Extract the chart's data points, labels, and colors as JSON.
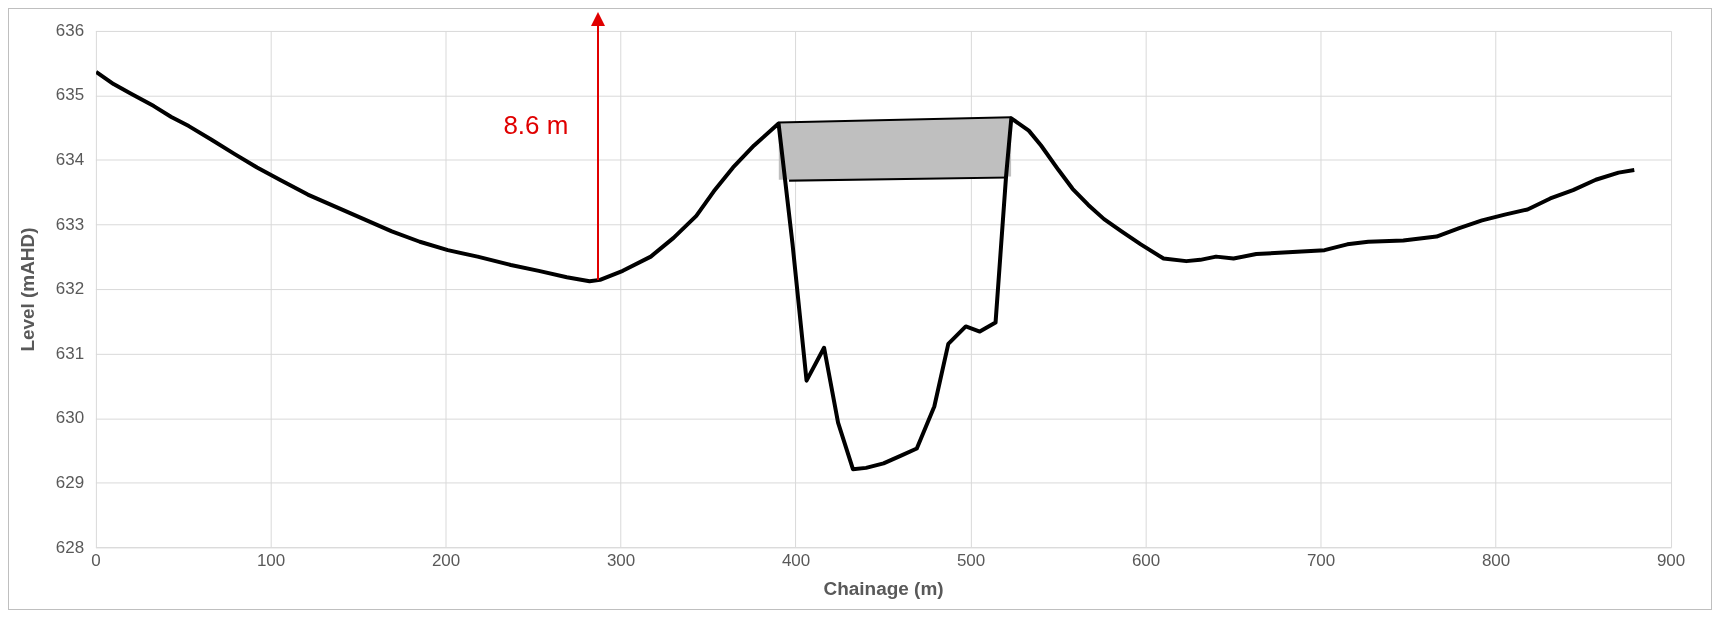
{
  "chart_data": {
    "type": "line",
    "xlabel": "Chainage (m)",
    "ylabel": "Level (mAHD)",
    "xlim": [
      0,
      900
    ],
    "xticks": [
      0,
      100,
      200,
      300,
      400,
      500,
      600,
      700,
      800,
      900
    ],
    "ylim": [
      628,
      636
    ],
    "yticks": [
      628,
      629,
      630,
      631,
      632,
      633,
      634,
      635,
      636
    ],
    "grid": true,
    "annotations": [
      "8.6 m"
    ],
    "series": [
      {
        "color": "#000000",
        "x": [
          0,
          10,
          20,
          33,
          43,
          53,
          66,
          79,
          92,
          105,
          121,
          137,
          153,
          169,
          185,
          201,
          218,
          237,
          253,
          269,
          282,
          288,
          301,
          317,
          330,
          343,
          353,
          364,
          376,
          390,
          398,
          406,
          416,
          424,
          432.5,
          440,
          450,
          460,
          469,
          479,
          487,
          497,
          505,
          514,
          520,
          523,
          533,
          540,
          550,
          558,
          567,
          576,
          586,
          597,
          610,
          623,
          631,
          640,
          650,
          663,
          676,
          689,
          702,
          715,
          727,
          747,
          766,
          779,
          792,
          805,
          818,
          831,
          844,
          857,
          870,
          879
        ],
        "values": [
          635.37,
          635.18,
          635.03,
          634.84,
          634.67,
          634.53,
          634.32,
          634.1,
          633.89,
          633.7,
          633.47,
          633.28,
          633.09,
          632.9,
          632.74,
          632.61,
          632.51,
          632.38,
          632.29,
          632.19,
          632.13,
          632.15,
          632.29,
          632.51,
          632.8,
          633.14,
          633.52,
          633.89,
          634.23,
          634.57,
          632.7,
          630.59,
          631.1,
          629.94,
          629.22,
          629.24,
          629.31,
          629.43,
          629.54,
          630.19,
          631.16,
          631.43,
          631.35,
          631.49,
          633.75,
          634.65,
          634.46,
          634.23,
          633.85,
          633.56,
          633.31,
          633.09,
          632.9,
          632.7,
          632.48,
          632.44,
          632.46,
          632.51,
          632.48,
          632.55,
          632.57,
          632.59,
          632.61,
          632.7,
          632.74,
          632.76,
          632.82,
          632.95,
          633.07,
          633.16,
          633.24,
          633.41,
          633.54,
          633.7,
          633.81,
          633.85
        ]
      },
      {
        "type": "line",
        "color": "#000000",
        "x": [
          390,
          523
        ],
        "values": [
          634.57,
          634.65
        ],
        "lower": [
          633.7,
          633.75
        ],
        "upper": [
          634.57,
          634.65
        ]
      },
      {
        "type": "line",
        "color": "#000000",
        "x": [
          396,
          520
        ],
        "values": [
          633.7,
          633.75
        ]
      }
    ]
  }
}
